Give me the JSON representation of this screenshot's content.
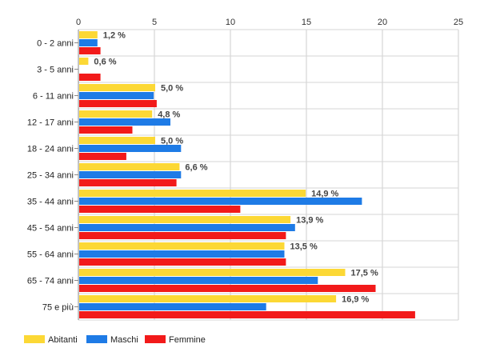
{
  "chart_data": {
    "type": "bar",
    "orientation": "horizontal",
    "categories": [
      "0 - 2 anni",
      "3 - 5 anni",
      "6 - 11 anni",
      "12 - 17 anni",
      "18 - 24 anni",
      "25 - 34 anni",
      "35 - 44 anni",
      "45 - 54 anni",
      "55 - 64 anni",
      "65 - 74 anni",
      "75 e più"
    ],
    "series": [
      {
        "name": "Abitanti",
        "color": "#fcd835",
        "values": [
          1.2,
          0.6,
          5.0,
          4.8,
          5.0,
          6.6,
          14.9,
          13.9,
          13.5,
          17.5,
          16.9
        ]
      },
      {
        "name": "Maschi",
        "color": "#1e7be6",
        "values": [
          1.2,
          0.0,
          4.9,
          6.0,
          6.7,
          6.7,
          18.6,
          14.2,
          13.5,
          15.7,
          12.3
        ]
      },
      {
        "name": "Femmine",
        "color": "#f21a1a",
        "values": [
          1.4,
          1.4,
          5.1,
          3.5,
          3.1,
          6.4,
          10.6,
          13.6,
          13.6,
          19.5,
          22.1
        ]
      }
    ],
    "data_labels": [
      "1,2 %",
      "0,6 %",
      "5,0 %",
      "4,8 %",
      "5,0 %",
      "6,6 %",
      "14,9 %",
      "13,9 %",
      "13,5 %",
      "17,5 %",
      "16,9 %"
    ],
    "xlim": [
      0,
      25
    ],
    "xticks": [
      "0",
      "5",
      "10",
      "15",
      "20",
      "25"
    ],
    "grid": true,
    "legend_position": "bottom-left"
  }
}
